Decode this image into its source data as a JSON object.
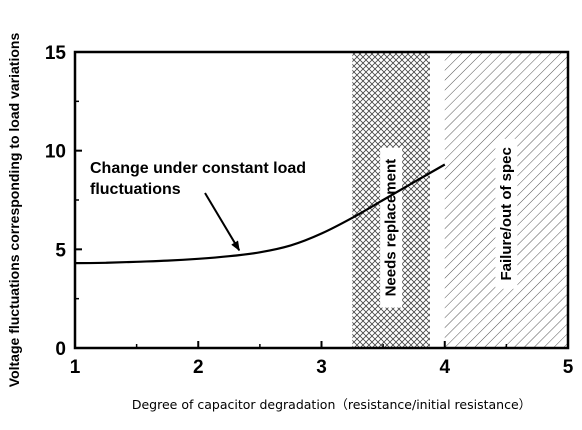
{
  "chart_data": {
    "type": "line",
    "title": "",
    "xlabel": "Degree of capacitor degradation（resistance/initial resistance）",
    "ylabel": "Voltage fluctuations corresponding to load variations",
    "xlim": [
      1,
      5
    ],
    "ylim": [
      0,
      15
    ],
    "xticks": [
      "1",
      "2",
      "3",
      "4",
      "5"
    ],
    "yticks": [
      "0",
      "5",
      "10",
      "15"
    ],
    "grid": false,
    "series": [
      {
        "x": [
          1.0,
          1.25,
          1.5,
          1.75,
          2.0,
          2.25,
          2.5,
          2.75,
          3.0,
          3.25,
          3.5,
          3.75,
          4.0
        ],
        "y": [
          4.3,
          4.32,
          4.37,
          4.43,
          4.52,
          4.65,
          4.85,
          5.2,
          5.8,
          6.6,
          7.5,
          8.4,
          9.3
        ]
      }
    ],
    "regions": [
      {
        "label": "Needs replacement",
        "x_range": [
          3.25,
          3.88
        ],
        "pattern": "crosshatch"
      },
      {
        "label": "Failure/out of spec",
        "x_range": [
          4.0,
          5.0
        ],
        "pattern": "diagonal"
      }
    ],
    "annotations": [
      {
        "lines": [
          "Change under constant load",
          "fluctuations"
        ],
        "points_to": {
          "x": 2.3,
          "y": 4.9
        }
      }
    ]
  }
}
